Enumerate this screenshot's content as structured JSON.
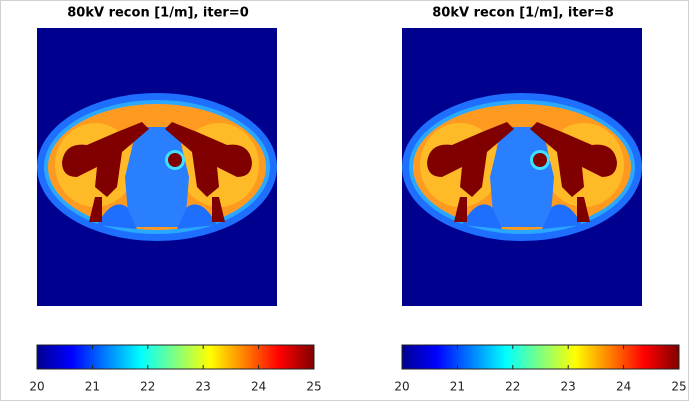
{
  "chart_data": [
    {
      "type": "image",
      "title": "80kV recon [1/m], iter=0",
      "colormap": "jet",
      "clim": [
        20,
        25
      ],
      "cticks": [
        20,
        21,
        22,
        23,
        24,
        25
      ]
    },
    {
      "type": "image",
      "title": "80kV recon [1/m], iter=8",
      "colormap": "jet",
      "clim": [
        20,
        25
      ],
      "cticks": [
        20,
        21,
        22,
        23,
        24,
        25
      ]
    }
  ]
}
